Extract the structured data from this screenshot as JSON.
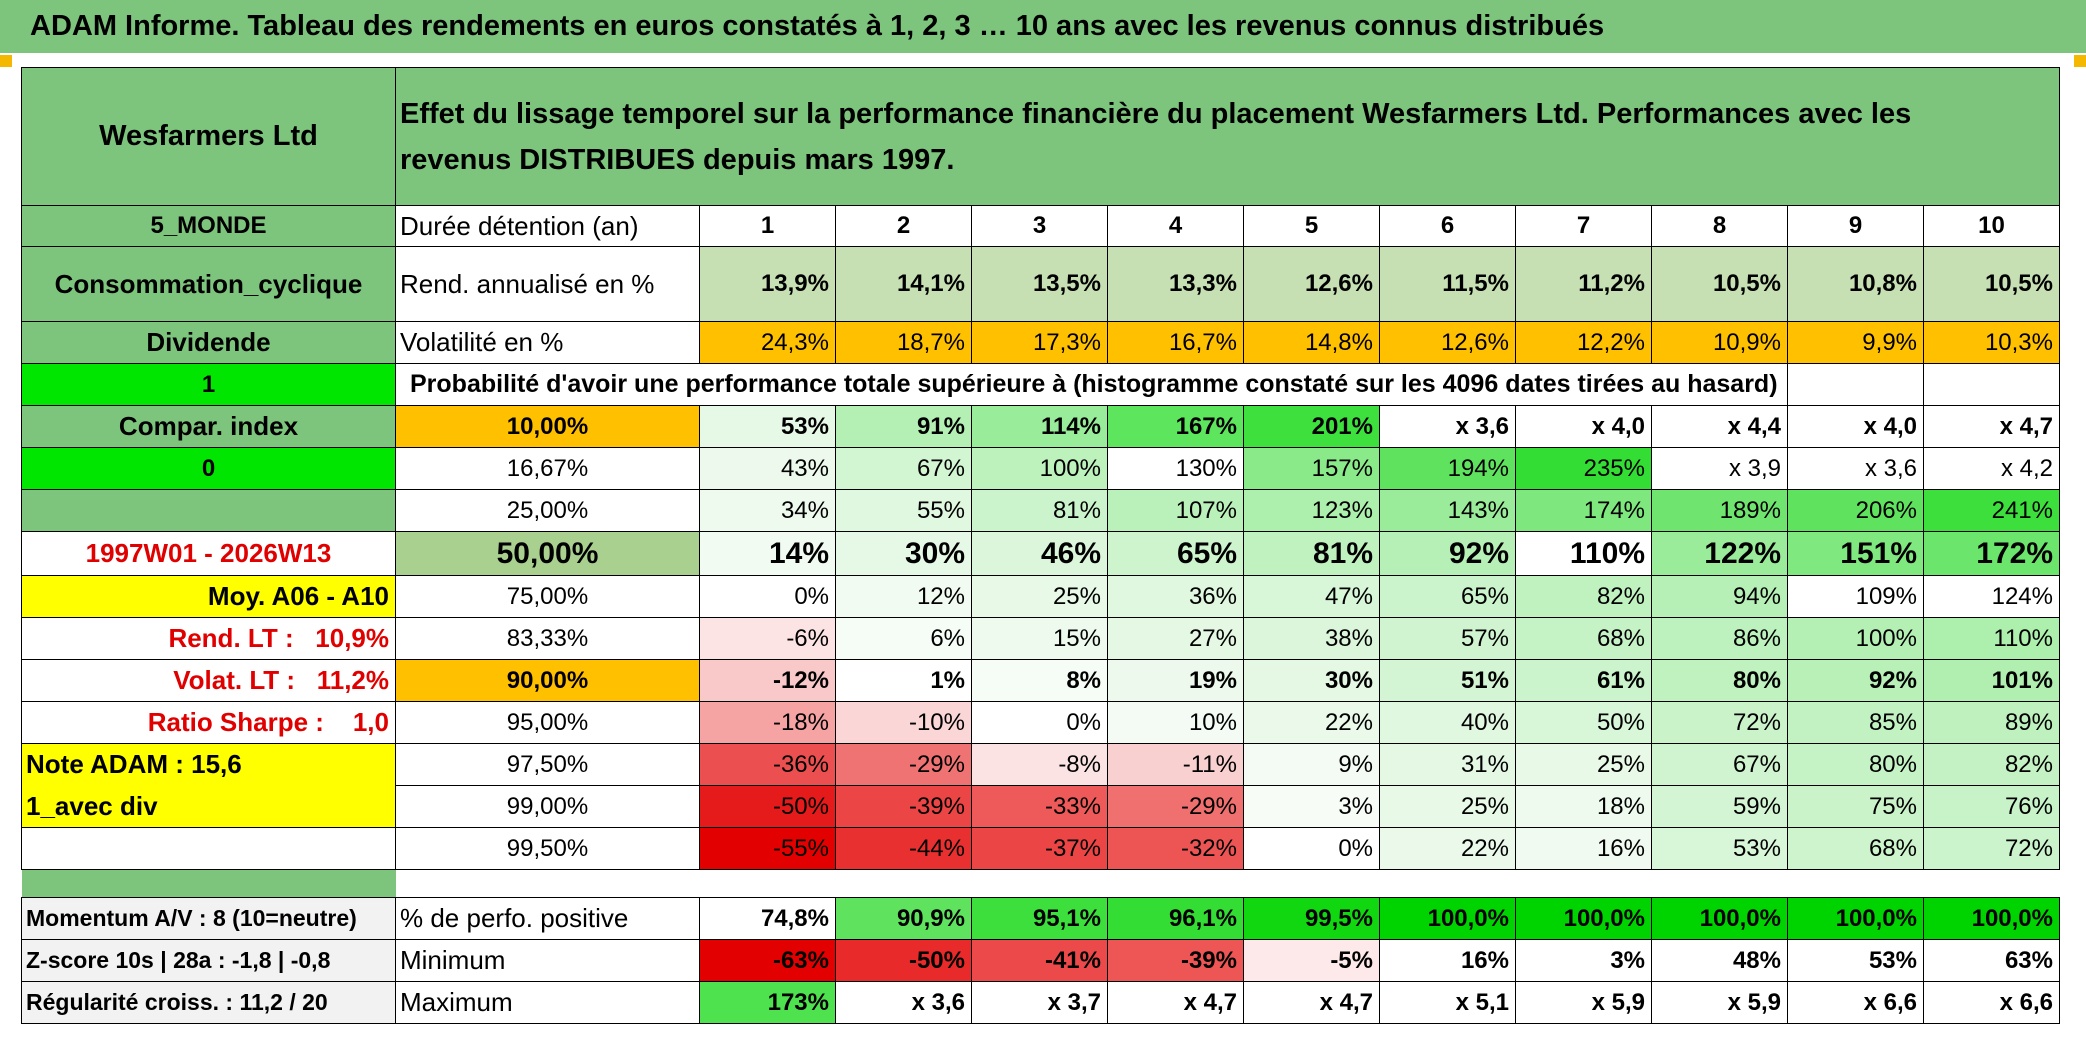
{
  "title": "ADAM Informe. Tableau des rendements en euros constatés à 1, 2, 3 … 10 ans avec les revenus connus distribués",
  "header": {
    "fund_name": "Wesfarmers Ltd",
    "description": "Effet du lissage temporel sur la performance financière du placement Wesfarmers Ltd. Performances avec les revenus DISTRIBUES depuis mars 1997."
  },
  "sidebar": {
    "region": "5_MONDE",
    "sector": "Consommation_cyclique",
    "income": "Dividende",
    "flag1": "1",
    "compar_label": "Compar. index",
    "flag0": "0",
    "period": "1997W01 - 2026W13",
    "moy": "Moy. A06 - A10",
    "rend_lt": "Rend. LT :   10,9%",
    "volat_lt": "Volat. LT :   11,2%",
    "sharpe": "Ratio Sharpe :    1,0",
    "note": "Note ADAM : 15,6",
    "div": "1_avec div",
    "momentum": "Momentum A/V : 8 (10=neutre)",
    "zscore": "Z-score 10s | 28a : -1,8 | -0,8",
    "regularite": "Régularité croiss. : 11,2 / 20"
  },
  "table": {
    "duration_label": "Durée détention (an)",
    "durations": [
      "1",
      "2",
      "3",
      "4",
      "5",
      "6",
      "7",
      "8",
      "9",
      "10"
    ],
    "rend_label": "Rend. annualisé en %",
    "rend": [
      "13,9%",
      "14,1%",
      "13,5%",
      "13,3%",
      "12,6%",
      "11,5%",
      "11,2%",
      "10,5%",
      "10,8%",
      "10,5%"
    ],
    "vol_label": "Volatilité en %",
    "vol": [
      "24,3%",
      "18,7%",
      "17,3%",
      "16,7%",
      "14,8%",
      "12,6%",
      "12,2%",
      "10,9%",
      "9,9%",
      "10,3%"
    ],
    "prob_label": "Probabilité d'avoir une performance totale supérieure à (histogramme constaté sur les 4096 dates tirées au hasard)",
    "rows": [
      {
        "p": "10,00%",
        "v": [
          "53%",
          "91%",
          "114%",
          "167%",
          "201%",
          "x 3,6",
          "x 4,0",
          "x 4,4",
          "x 4,0",
          "x 4,7"
        ]
      },
      {
        "p": "16,67%",
        "v": [
          "43%",
          "67%",
          "100%",
          "130%",
          "157%",
          "194%",
          "235%",
          "x 3,9",
          "x 3,6",
          "x 4,2"
        ]
      },
      {
        "p": "25,00%",
        "v": [
          "34%",
          "55%",
          "81%",
          "107%",
          "123%",
          "143%",
          "174%",
          "189%",
          "206%",
          "241%"
        ]
      },
      {
        "p": "50,00%",
        "v": [
          "14%",
          "30%",
          "46%",
          "65%",
          "81%",
          "92%",
          "110%",
          "122%",
          "151%",
          "172%"
        ]
      },
      {
        "p": "75,00%",
        "v": [
          "0%",
          "12%",
          "25%",
          "36%",
          "47%",
          "65%",
          "82%",
          "94%",
          "109%",
          "124%"
        ]
      },
      {
        "p": "83,33%",
        "v": [
          "-6%",
          "6%",
          "15%",
          "27%",
          "38%",
          "57%",
          "68%",
          "86%",
          "100%",
          "110%"
        ]
      },
      {
        "p": "90,00%",
        "v": [
          "-12%",
          "1%",
          "8%",
          "19%",
          "30%",
          "51%",
          "61%",
          "80%",
          "92%",
          "101%"
        ]
      },
      {
        "p": "95,00%",
        "v": [
          "-18%",
          "-10%",
          "0%",
          "10%",
          "22%",
          "40%",
          "50%",
          "72%",
          "85%",
          "89%"
        ]
      },
      {
        "p": "97,50%",
        "v": [
          "-36%",
          "-29%",
          "-8%",
          "-11%",
          "9%",
          "31%",
          "25%",
          "67%",
          "80%",
          "82%"
        ]
      },
      {
        "p": "99,00%",
        "v": [
          "-50%",
          "-39%",
          "-33%",
          "-29%",
          "3%",
          "25%",
          "18%",
          "59%",
          "75%",
          "76%"
        ]
      },
      {
        "p": "99,50%",
        "v": [
          "-55%",
          "-44%",
          "-37%",
          "-32%",
          "0%",
          "22%",
          "16%",
          "53%",
          "68%",
          "72%"
        ]
      }
    ],
    "pos_label": "% de perfo. positive",
    "pos": [
      "74,8%",
      "90,9%",
      "95,1%",
      "96,1%",
      "99,5%",
      "100,0%",
      "100,0%",
      "100,0%",
      "100,0%",
      "100,0%"
    ],
    "min_label": "Minimum",
    "min": [
      "-63%",
      "-50%",
      "-41%",
      "-39%",
      "-5%",
      "16%",
      "3%",
      "48%",
      "53%",
      "63%"
    ],
    "max_label": "Maximum",
    "max": [
      "173%",
      "x 3,6",
      "x 3,7",
      "x 4,7",
      "x 4,7",
      "x 5,1",
      "x 5,9",
      "x 5,9",
      "x 6,6",
      "x 6,6"
    ]
  },
  "colors": {
    "header_green": "#7dc47d",
    "bright_green": "#00e600",
    "orange": "#ffc000",
    "yellow": "#ffff00",
    "red_text": "#e00000"
  }
}
